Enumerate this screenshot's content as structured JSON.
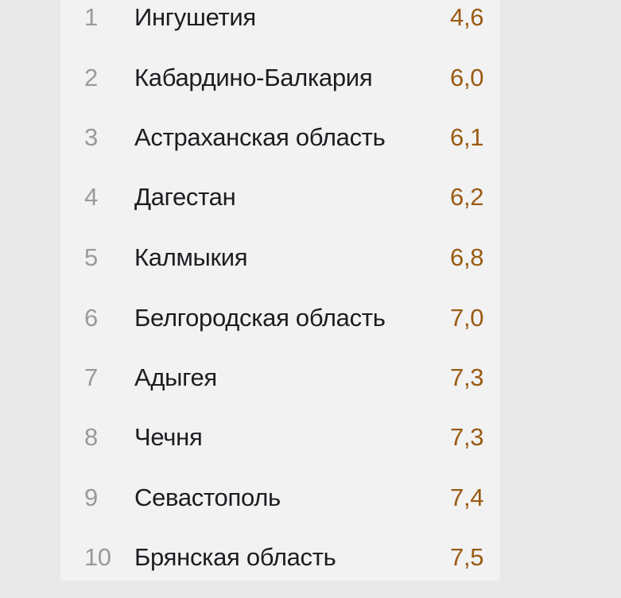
{
  "ranking": {
    "rows": [
      {
        "rank": "1",
        "region": "Ингушетия",
        "value": "4,6"
      },
      {
        "rank": "2",
        "region": "Кабардино-Балкария",
        "value": "6,0"
      },
      {
        "rank": "3",
        "region": "Астраханская область",
        "value": "6,1"
      },
      {
        "rank": "4",
        "region": "Дагестан",
        "value": "6,2"
      },
      {
        "rank": "5",
        "region": "Калмыкия",
        "value": "6,8"
      },
      {
        "rank": "6",
        "region": "Белгородская область",
        "value": "7,0"
      },
      {
        "rank": "7",
        "region": "Адыгея",
        "value": "7,3"
      },
      {
        "rank": "8",
        "region": "Чечня",
        "value": "7,3"
      },
      {
        "rank": "9",
        "region": "Севастополь",
        "value": "7,4"
      },
      {
        "rank": "10",
        "region": "Брянская область",
        "value": "7,5"
      }
    ]
  }
}
